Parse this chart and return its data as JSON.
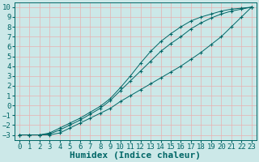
{
  "xlabel": "Humidex (Indice chaleur)",
  "ylabel": "",
  "background_color": "#cce8e8",
  "grid_color": "#e8b0b0",
  "line_color": "#006666",
  "marker": "+",
  "xlim": [
    -0.5,
    23.5
  ],
  "ylim": [
    -3.5,
    10.5
  ],
  "xticks": [
    0,
    1,
    2,
    3,
    4,
    5,
    6,
    7,
    8,
    9,
    10,
    11,
    12,
    13,
    14,
    15,
    16,
    17,
    18,
    19,
    20,
    21,
    22,
    23
  ],
  "yticks": [
    -3,
    -2,
    -1,
    0,
    1,
    2,
    3,
    4,
    5,
    6,
    7,
    8,
    9,
    10
  ],
  "curve1_x": [
    0,
    1,
    2,
    3,
    4,
    5,
    6,
    7,
    8,
    9,
    10,
    11,
    12,
    13,
    14,
    15,
    16,
    17,
    18,
    19,
    20,
    21,
    22,
    23
  ],
  "curve1_y": [
    -3.0,
    -3.0,
    -3.0,
    -3.0,
    -2.8,
    -2.3,
    -1.8,
    -1.3,
    -0.8,
    -0.3,
    0.4,
    1.0,
    1.6,
    2.2,
    2.8,
    3.4,
    4.0,
    4.7,
    5.4,
    6.2,
    7.0,
    8.0,
    9.0,
    10.0
  ],
  "curve2_x": [
    0,
    1,
    2,
    3,
    4,
    5,
    6,
    7,
    8,
    9,
    10,
    11,
    12,
    13,
    14,
    15,
    16,
    17,
    18,
    19,
    20,
    21,
    22,
    23
  ],
  "curve2_y": [
    -3.0,
    -3.0,
    -3.0,
    -2.9,
    -2.5,
    -2.0,
    -1.5,
    -0.9,
    -0.3,
    0.5,
    1.5,
    2.5,
    3.5,
    4.5,
    5.5,
    6.3,
    7.0,
    7.8,
    8.4,
    8.9,
    9.3,
    9.6,
    9.8,
    10.0
  ],
  "curve3_x": [
    0,
    1,
    2,
    3,
    4,
    5,
    6,
    7,
    8,
    9,
    10,
    11,
    12,
    13,
    14,
    15,
    16,
    17,
    18,
    19,
    20,
    21,
    22,
    23
  ],
  "curve3_y": [
    -3.0,
    -3.0,
    -3.0,
    -2.8,
    -2.3,
    -1.8,
    -1.3,
    -0.7,
    -0.1,
    0.7,
    1.8,
    3.0,
    4.3,
    5.5,
    6.5,
    7.3,
    8.0,
    8.6,
    9.0,
    9.3,
    9.6,
    9.8,
    9.9,
    10.0
  ],
  "xlabel_fontsize": 8,
  "tick_fontsize": 6.5
}
